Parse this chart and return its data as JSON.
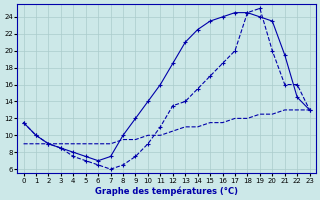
{
  "title": "Graphe des températures (°C)",
  "background_color": "#cce8e8",
  "grid_color": "#aacccc",
  "line_color": "#0000aa",
  "xlim": [
    -0.5,
    23.5
  ],
  "ylim": [
    5.5,
    25.5
  ],
  "xticks": [
    0,
    1,
    2,
    3,
    4,
    5,
    6,
    7,
    8,
    9,
    10,
    11,
    12,
    13,
    14,
    15,
    16,
    17,
    18,
    19,
    20,
    21,
    22,
    23
  ],
  "yticks": [
    6,
    8,
    10,
    12,
    14,
    16,
    18,
    20,
    22,
    24
  ],
  "line1": {
    "x": [
      0,
      1,
      2,
      3,
      4,
      5,
      6,
      7,
      8,
      9,
      10,
      11,
      12,
      13,
      14,
      15,
      16,
      17,
      18,
      19,
      20,
      21,
      22,
      23
    ],
    "y": [
      11.5,
      10.0,
      9.0,
      8.5,
      8.0,
      7.5,
      7.0,
      7.5,
      10.0,
      12.0,
      14.0,
      16.0,
      18.5,
      21.0,
      22.5,
      23.5,
      24.0,
      24.5,
      24.5,
      24.0,
      23.5,
      19.5,
      14.5,
      13.0
    ],
    "style": "-",
    "marker": "+"
  },
  "line2": {
    "x": [
      0,
      1,
      2,
      3,
      4,
      5,
      6,
      7,
      8,
      9,
      10,
      11,
      12,
      13,
      14,
      15,
      16,
      17,
      18,
      19,
      20,
      21,
      22,
      23
    ],
    "y": [
      11.5,
      10.0,
      9.0,
      8.5,
      7.5,
      7.0,
      6.5,
      6.0,
      6.5,
      7.5,
      9.0,
      11.0,
      13.5,
      14.0,
      15.5,
      17.0,
      18.5,
      20.0,
      24.5,
      25.0,
      20.0,
      16.0,
      16.0,
      13.0
    ],
    "style": "--",
    "marker": "+"
  },
  "line3": {
    "x": [
      0,
      1,
      2,
      3,
      4,
      5,
      6,
      7,
      8,
      9,
      10,
      11,
      12,
      13,
      14,
      15,
      16,
      17,
      18,
      19,
      20,
      21,
      22,
      23
    ],
    "y": [
      9.0,
      9.0,
      9.0,
      9.0,
      9.0,
      9.0,
      9.0,
      9.0,
      9.5,
      9.5,
      10.0,
      10.0,
      10.5,
      11.0,
      11.0,
      11.5,
      11.5,
      12.0,
      12.0,
      12.5,
      12.5,
      13.0,
      13.0,
      13.0
    ],
    "style": "--",
    "marker": null
  }
}
